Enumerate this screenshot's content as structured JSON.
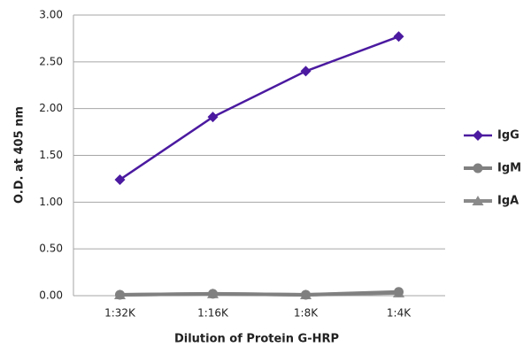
{
  "chart_data": {
    "type": "line",
    "x_label": "Dilution of Protein G-HRP",
    "y_label": "O.D. at 405 nm",
    "categories": [
      "1:32K",
      "1:16K",
      "1:8K",
      "1:4K"
    ],
    "series": [
      {
        "name": "IgG",
        "color": "#4b1aa0",
        "marker": "diamond",
        "values": [
          1.24,
          1.91,
          2.4,
          2.77
        ]
      },
      {
        "name": "IgM",
        "color": "#808080",
        "marker": "circle",
        "values": [
          0.01,
          0.02,
          0.01,
          0.04
        ]
      },
      {
        "name": "IgA",
        "color": "#8a8a8a",
        "marker": "triangle",
        "values": [
          0.01,
          0.02,
          0.01,
          0.03
        ]
      }
    ],
    "ylim": [
      0,
      3
    ],
    "yticks": [
      {
        "value": 0,
        "label": "0.00"
      },
      {
        "value": 0.5,
        "label": "0.50"
      },
      {
        "value": 1,
        "label": "1.00"
      },
      {
        "value": 1.5,
        "label": "1.50"
      },
      {
        "value": 2,
        "label": "2.00"
      },
      {
        "value": 2.5,
        "label": "2.50"
      },
      {
        "value": 3,
        "label": "3.00"
      }
    ],
    "grid": true,
    "legend": "right"
  }
}
